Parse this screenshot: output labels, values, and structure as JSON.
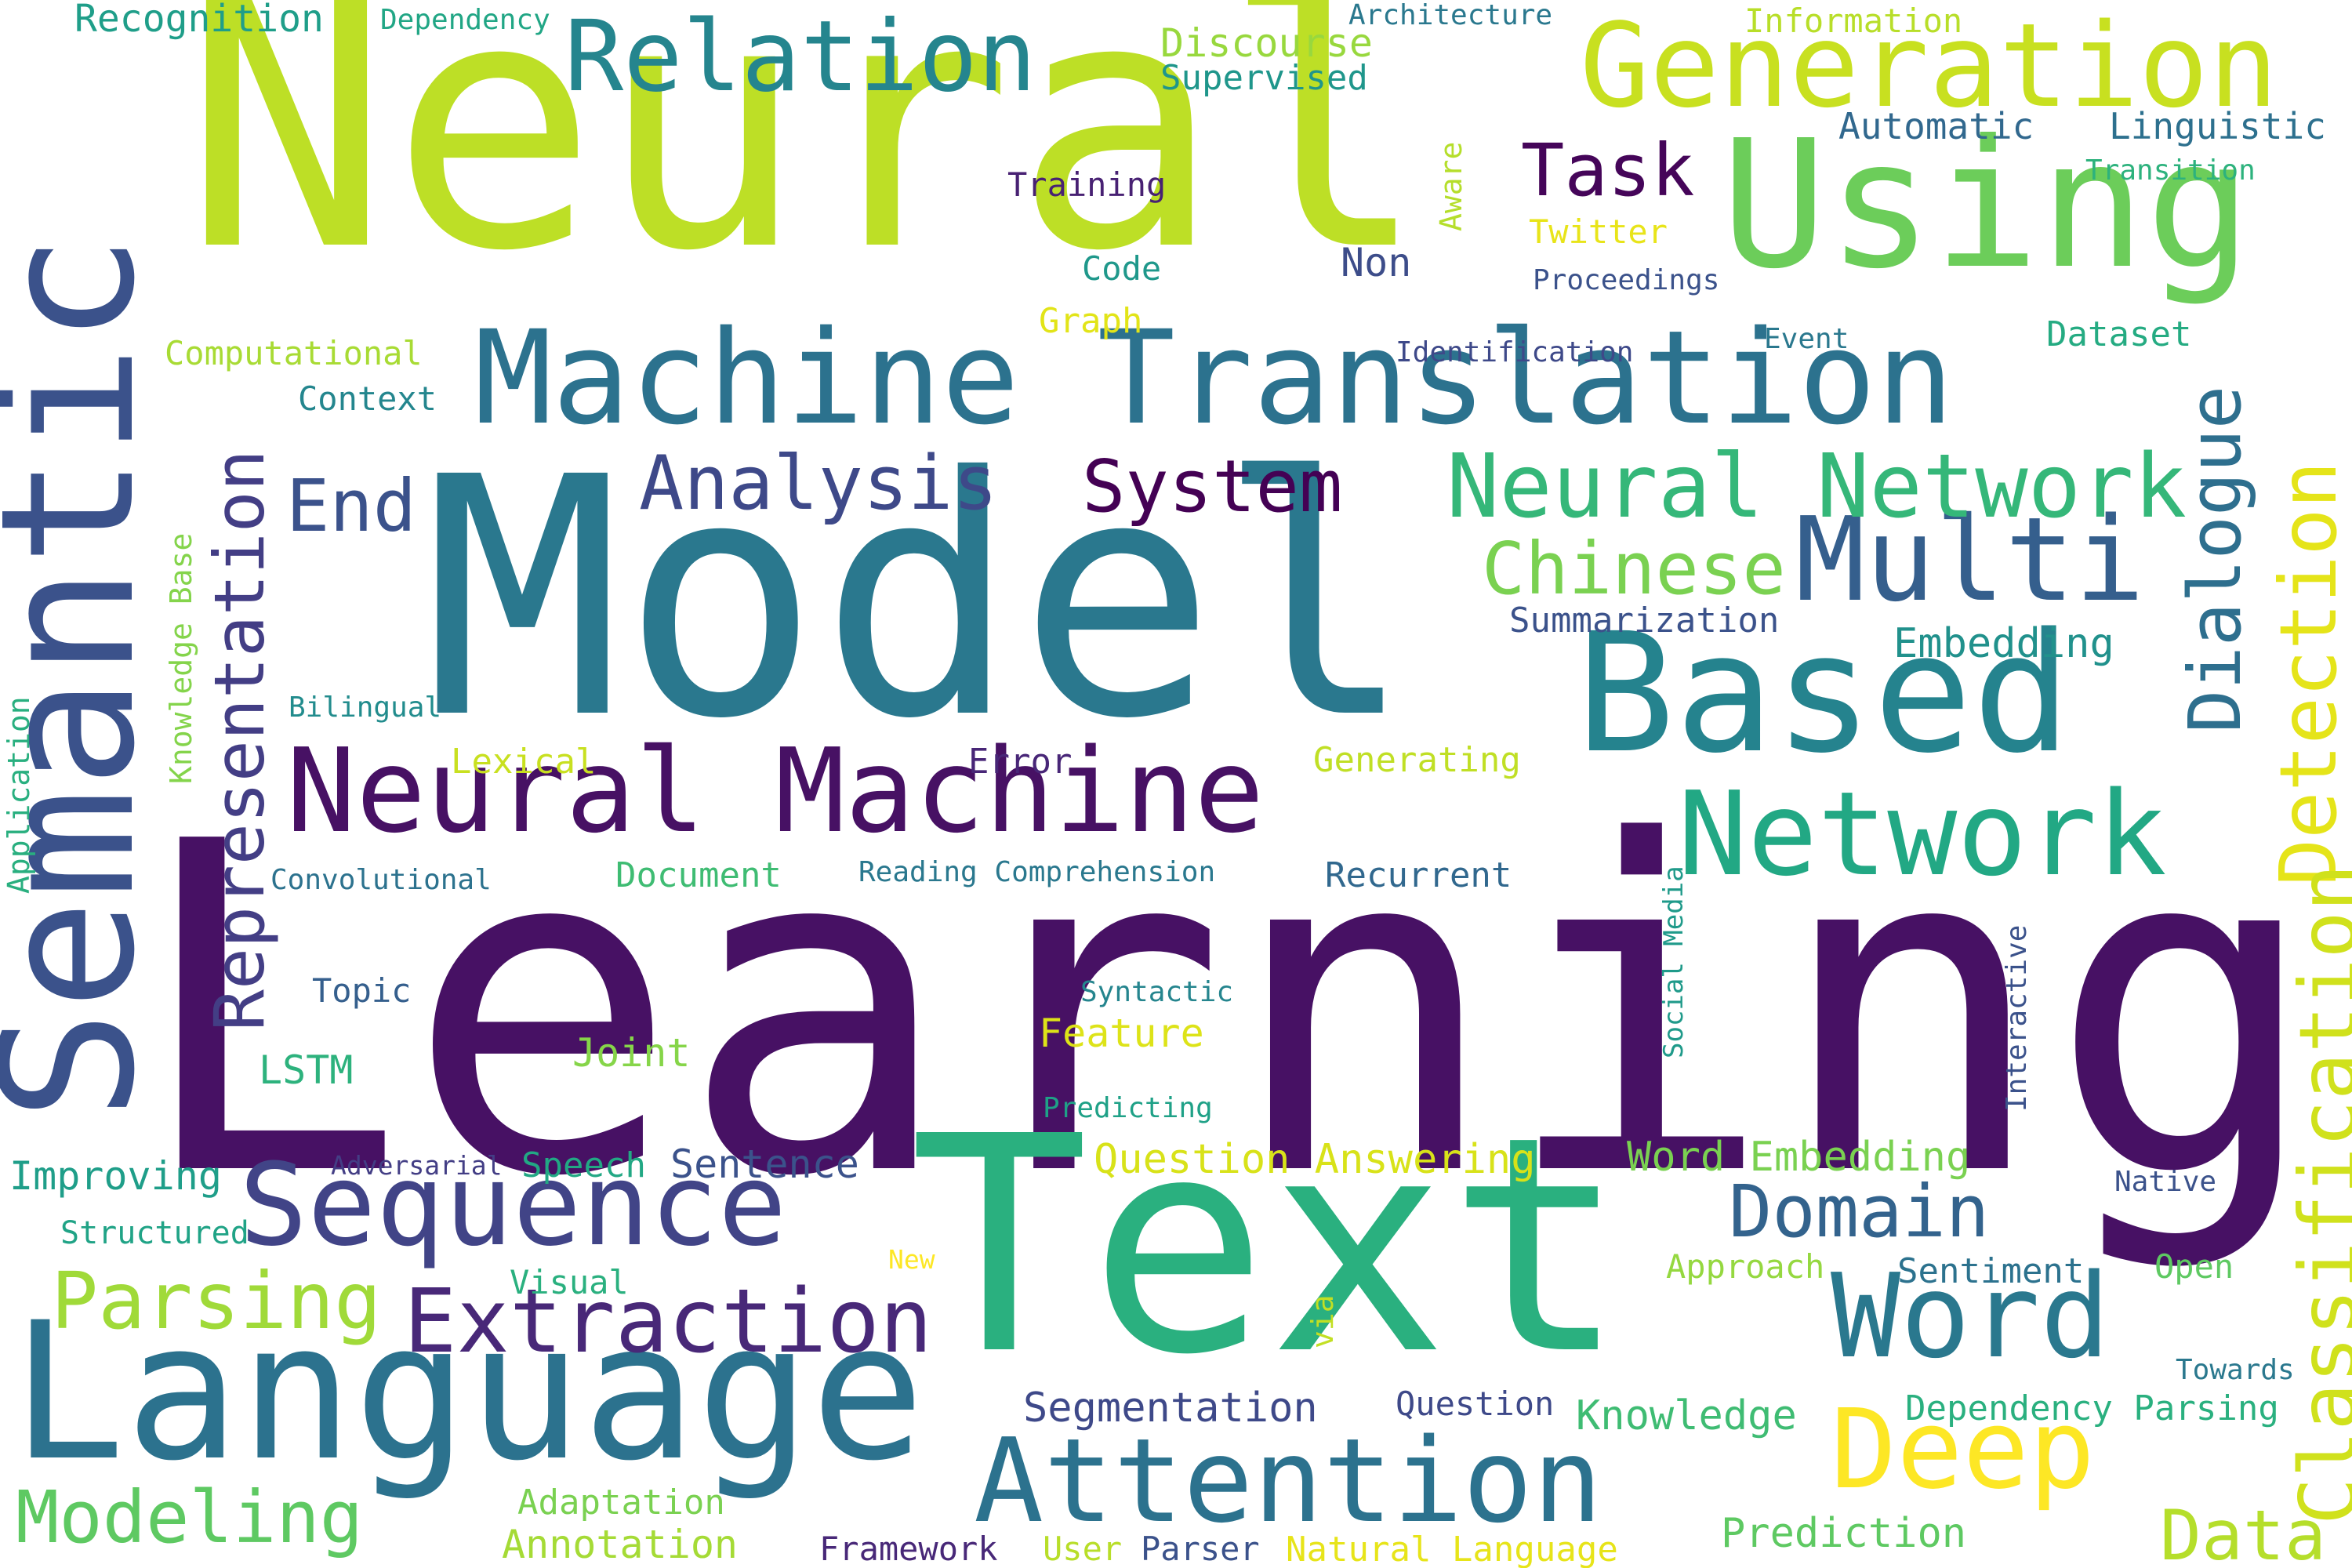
{
  "cloud": {
    "words": [
      {
        "text": "Neural",
        "color": "#bddf26"
      },
      {
        "text": "Learning",
        "color": "#471164"
      },
      {
        "text": "Model",
        "color": "#2a788e"
      },
      {
        "text": "Text",
        "color": "#2ab07f"
      },
      {
        "text": "Semantic",
        "color": "#3b528b"
      },
      {
        "text": "Language",
        "color": "#2c728e"
      },
      {
        "text": "Using",
        "color": "#6ccd5a"
      },
      {
        "text": "Based",
        "color": "#25838e"
      },
      {
        "text": "Machine Translation",
        "color": "#2c728e"
      },
      {
        "text": "Neural Machine",
        "color": "#471164"
      },
      {
        "text": "Network",
        "color": "#22a884"
      },
      {
        "text": "Multi",
        "color": "#355f8d"
      },
      {
        "text": "Sequence",
        "color": "#414487"
      },
      {
        "text": "Attention",
        "color": "#2c728e"
      },
      {
        "text": "Word",
        "color": "#2a788e"
      },
      {
        "text": "Deep",
        "color": "#fde725"
      },
      {
        "text": "Extraction",
        "color": "#482878"
      },
      {
        "text": "Generation",
        "color": "#c8e020"
      },
      {
        "text": "Relation",
        "color": "#25858e"
      },
      {
        "text": "Neural Network",
        "color": "#35b779"
      },
      {
        "text": "Detection",
        "color": "#e5e419"
      },
      {
        "text": "Classification",
        "color": "#d0e11c"
      },
      {
        "text": "Dialogue",
        "color": "#2e6f8e"
      },
      {
        "text": "Representation",
        "color": "#433e85"
      },
      {
        "text": "Domain",
        "color": "#33638d"
      },
      {
        "text": "Parsing",
        "color": "#a0da39"
      },
      {
        "text": "Modeling",
        "color": "#5ec962"
      },
      {
        "text": "Chinese",
        "color": "#7ad151"
      },
      {
        "text": "Analysis",
        "color": "#3e4989"
      },
      {
        "text": "System",
        "color": "#440154"
      },
      {
        "text": "Task",
        "color": "#450559"
      },
      {
        "text": "End",
        "color": "#3b528b"
      },
      {
        "text": "Data",
        "color": "#b5de2b"
      },
      {
        "text": "Knowledge",
        "color": "#3fbc73"
      },
      {
        "text": "Question Answering",
        "color": "#d8e219"
      },
      {
        "text": "Word Embedding",
        "color": "#7ad151"
      },
      {
        "text": "Segmentation",
        "color": "#3e4989"
      },
      {
        "text": "Embedding",
        "color": "#21918c"
      },
      {
        "text": "Summarization",
        "color": "#3b528b"
      },
      {
        "text": "Prediction",
        "color": "#5ec962"
      },
      {
        "text": "Dependency Parsing",
        "color": "#2ab07f"
      },
      {
        "text": "Sentence",
        "color": "#3b528b"
      },
      {
        "text": "Improving",
        "color": "#1f9e89"
      },
      {
        "text": "Annotation",
        "color": "#a5db36"
      },
      {
        "text": "Natural Language",
        "color": "#e7e419"
      },
      {
        "text": "Adaptation",
        "color": "#7ad151"
      },
      {
        "text": "Sentiment",
        "color": "#2c728e"
      },
      {
        "text": "Feature",
        "color": "#dde318"
      },
      {
        "text": "Joint",
        "color": "#86d549"
      },
      {
        "text": "LSTM",
        "color": "#2db27d"
      },
      {
        "text": "Speech",
        "color": "#22a884"
      },
      {
        "text": "Document",
        "color": "#3fbc73"
      },
      {
        "text": "Recurrent",
        "color": "#31688e"
      },
      {
        "text": "Error",
        "color": "#482677"
      },
      {
        "text": "Generating",
        "color": "#c0df25"
      },
      {
        "text": "Lexical",
        "color": "#c8e020"
      },
      {
        "text": "Context",
        "color": "#24868e"
      },
      {
        "text": "Computational",
        "color": "#a8db34"
      },
      {
        "text": "Graph",
        "color": "#e2e418"
      },
      {
        "text": "Code",
        "color": "#1f988b"
      },
      {
        "text": "Training",
        "color": "#482173"
      },
      {
        "text": "Non",
        "color": "#3d4d8a"
      },
      {
        "text": "Twitter",
        "color": "#e8e419"
      },
      {
        "text": "Proceedings",
        "color": "#3b528b"
      },
      {
        "text": "Automatic",
        "color": "#31688e"
      },
      {
        "text": "Linguistic",
        "color": "#2d708e"
      },
      {
        "text": "Transition",
        "color": "#2db27d"
      },
      {
        "text": "Dataset",
        "color": "#25ab82"
      },
      {
        "text": "Event",
        "color": "#2a788e"
      },
      {
        "text": "Identification",
        "color": "#3e4989"
      },
      {
        "text": "Supervised",
        "color": "#1f968b"
      },
      {
        "text": "Discourse",
        "color": "#98d83e"
      },
      {
        "text": "Architecture",
        "color": "#2a788e"
      },
      {
        "text": "Information",
        "color": "#b8de29"
      },
      {
        "text": "Recognition",
        "color": "#1f9e89"
      },
      {
        "text": "Dependency",
        "color": "#21a685"
      },
      {
        "text": "Topic",
        "color": "#355f8d"
      },
      {
        "text": "Syntactic",
        "color": "#25858e"
      },
      {
        "text": "Predicting",
        "color": "#1fa187"
      },
      {
        "text": "Adversarial",
        "color": "#433e85"
      },
      {
        "text": "Structured",
        "color": "#20a386"
      },
      {
        "text": "Visual",
        "color": "#2ab07f"
      },
      {
        "text": "New",
        "color": "#fde725"
      },
      {
        "text": "Approach",
        "color": "#95d840"
      },
      {
        "text": "Open",
        "color": "#5ec962"
      },
      {
        "text": "Native",
        "color": "#3b528b"
      },
      {
        "text": "Towards",
        "color": "#2a788e"
      },
      {
        "text": "Question",
        "color": "#3e4989"
      },
      {
        "text": "Framework",
        "color": "#482878"
      },
      {
        "text": "User",
        "color": "#b8de29"
      },
      {
        "text": "Parser",
        "color": "#3b528b"
      },
      {
        "text": "Bilingual",
        "color": "#228c8d"
      },
      {
        "text": "Convolutional",
        "color": "#2c728e"
      },
      {
        "text": "Reading Comprehension",
        "color": "#2a788e"
      },
      {
        "text": "Knowledge Base",
        "color": "#84d44b"
      },
      {
        "text": "Application",
        "color": "#29af7f"
      },
      {
        "text": "Aware",
        "color": "#b5de2b"
      },
      {
        "text": "Social Media",
        "color": "#1f9a8a"
      },
      {
        "text": "Interactive",
        "color": "#3b528b"
      },
      {
        "text": "via",
        "color": "#c2df23"
      }
    ]
  }
}
